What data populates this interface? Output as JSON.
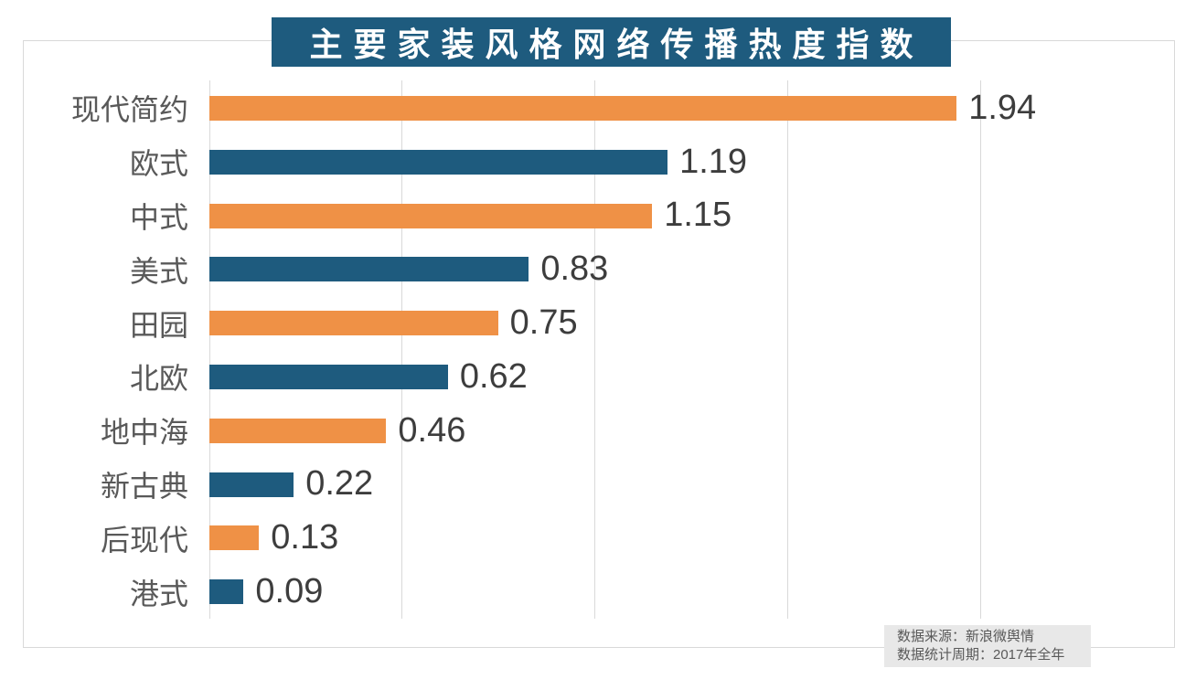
{
  "chart_data": {
    "type": "bar",
    "orientation": "horizontal",
    "title": "主要家装风格网络传播热度指数",
    "categories": [
      "现代简约",
      "欧式",
      "中式",
      "美式",
      "田园",
      "北欧",
      "地中海",
      "新古典",
      "后现代",
      "港式"
    ],
    "values": [
      1.94,
      1.19,
      1.15,
      0.83,
      0.75,
      0.62,
      0.46,
      0.22,
      0.13,
      0.09
    ],
    "value_labels": [
      "1.94",
      "1.19",
      "1.15",
      "0.83",
      "0.75",
      "0.62",
      "0.46",
      "0.22",
      "0.13",
      "0.09"
    ],
    "xlim": [
      0,
      2.0
    ],
    "gridline_values": [
      0,
      0.5,
      1.0,
      1.5,
      2.0
    ],
    "grid": true,
    "legend": false,
    "bar_colors_alternating": [
      "#EF9146",
      "#1E5B7E"
    ],
    "title_bg_color": "#1E5B7E",
    "title_text_color": "#FFFFFF",
    "category_label_color": "#595959",
    "value_label_color": "#3D3D3D",
    "gridline_color": "#D9D9D9"
  },
  "footer": {
    "source_line": "数据来源：新浪微舆情",
    "period_line": "数据统计周期：2017年全年",
    "bg_color": "#E8E8E8",
    "text_color": "#595959"
  }
}
